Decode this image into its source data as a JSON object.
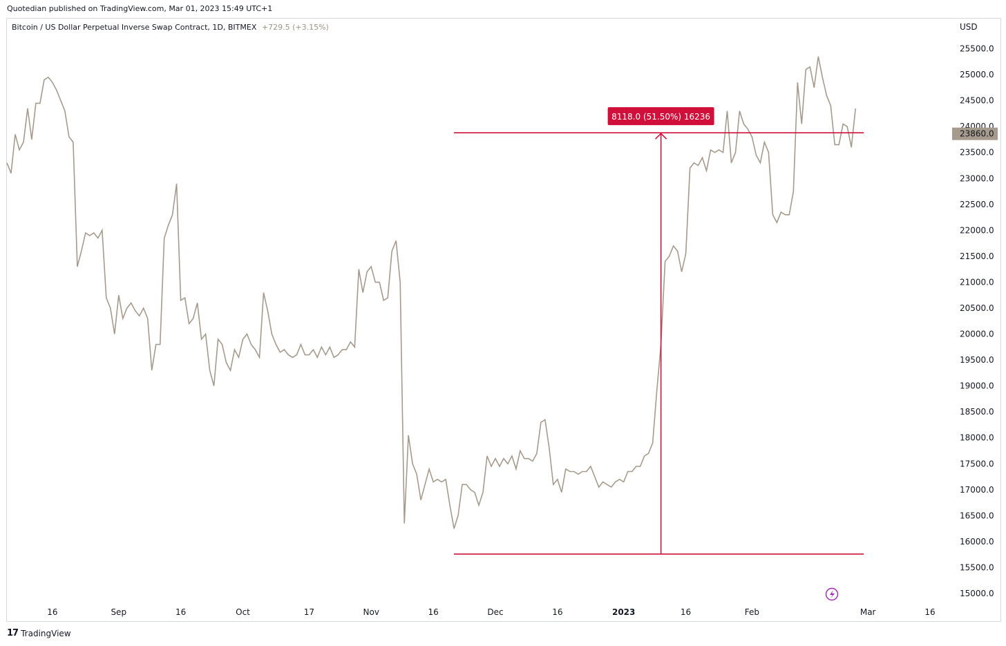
{
  "header": {
    "published": "Quotedian published on TradingView.com, Mar 01, 2023 15:49 UTC+1"
  },
  "legend": {
    "symbol": "Bitcoin / US Dollar Perpetual Inverse Swap Contract, 1D, BITMEX",
    "change": "+729.5 (+3.15%)"
  },
  "footer": {
    "logo_glyph": "17",
    "brand": "TradingView"
  },
  "colors": {
    "line": "#a59a8c",
    "measure": "#d0103a",
    "price_tag": "#a59a8c"
  },
  "chart_data": {
    "type": "line",
    "ylabel": "USD",
    "ylim": [
      14800,
      25800
    ],
    "y_ticks": [
      "15000.0",
      "15500.0",
      "16000.0",
      "16500.0",
      "17000.0",
      "17500.0",
      "18000.0",
      "18500.0",
      "19000.0",
      "19500.0",
      "20000.0",
      "20500.0",
      "21000.0",
      "21500.0",
      "22000.0",
      "22500.0",
      "23000.0",
      "23500.0",
      "24000.0",
      "24500.0",
      "25000.0",
      "25500.0"
    ],
    "x_ticks": [
      {
        "label": "16",
        "date": "2022-08-16"
      },
      {
        "label": "Sep",
        "date": "2022-09-01"
      },
      {
        "label": "16",
        "date": "2022-09-16"
      },
      {
        "label": "Oct",
        "date": "2022-10-01"
      },
      {
        "label": "17",
        "date": "2022-10-17"
      },
      {
        "label": "Nov",
        "date": "2022-11-01"
      },
      {
        "label": "16",
        "date": "2022-11-16"
      },
      {
        "label": "Dec",
        "date": "2022-12-01"
      },
      {
        "label": "16",
        "date": "2022-12-16"
      },
      {
        "label": "2023",
        "date": "2023-01-01",
        "bold": true
      },
      {
        "label": "16",
        "date": "2023-01-16"
      },
      {
        "label": "Feb",
        "date": "2023-02-01"
      },
      {
        "label": "Mar",
        "date": "2023-03-01"
      },
      {
        "label": "16",
        "date": "2023-03-16"
      }
    ],
    "xlim": [
      "2022-08-05",
      "2023-03-21"
    ],
    "last_price": "23860.0",
    "series": [
      {
        "x_start": "2022-08-05",
        "values": [
          23300,
          23100,
          23850,
          23550,
          23700,
          24350,
          23750,
          24450,
          24450,
          24900,
          24950,
          24850,
          24700,
          24500,
          24300,
          23800,
          23700,
          21300,
          21600,
          21950,
          21900,
          21950,
          21850,
          22000,
          20700,
          20500,
          20000,
          20750,
          20300,
          20500,
          20600,
          20450,
          20350,
          20500,
          20300,
          19300,
          19800,
          19800,
          21850,
          22100,
          22300,
          22900,
          20650,
          20700,
          20200,
          20300,
          20600,
          19900,
          20000,
          19300,
          19000,
          19900,
          19800,
          19450,
          19300,
          19700,
          19550,
          19900,
          20000,
          19800,
          19700,
          19550,
          20800,
          20450,
          20000,
          19800,
          19650,
          19700,
          19600,
          19550,
          19600,
          19800,
          19600,
          19600,
          19700,
          19550,
          19750,
          19600,
          19750,
          19550,
          19600,
          19700,
          19700,
          19850,
          19750,
          21250,
          20800,
          21200,
          21300,
          21000,
          21000,
          20650,
          20700,
          21600,
          21800,
          21000,
          16350,
          18050,
          17500,
          17300,
          16800,
          17100,
          17400,
          17150,
          17200,
          17150,
          17200,
          16700,
          16250,
          16500,
          17100,
          17100,
          17000,
          16950,
          16700,
          16950,
          17650,
          17450,
          17600,
          17450,
          17600,
          17500,
          17650,
          17400,
          17750,
          17600,
          17600,
          17550,
          17700,
          18300,
          18350,
          17800,
          17100,
          17200,
          16950,
          17400,
          17350,
          17350,
          17300,
          17350,
          17350,
          17450,
          17250,
          17050,
          17150,
          17100,
          17050,
          17150,
          17200,
          17150,
          17350,
          17350,
          17450,
          17450,
          17650,
          17700,
          17900,
          18900,
          19800,
          21400,
          21500,
          21700,
          21600,
          21200,
          21550,
          23200,
          23300,
          23250,
          23400,
          23150,
          23550,
          23500,
          23550,
          23500,
          24300,
          23300,
          23500,
          24300,
          24050,
          23950,
          23800,
          23450,
          23300,
          23700,
          23500,
          22300,
          22150,
          22350,
          22300,
          22300,
          22750,
          24850,
          24050,
          25100,
          25150,
          24750,
          25350,
          24950,
          24600,
          24400,
          23650,
          23650,
          24050,
          24000,
          23600,
          24350
        ]
      }
    ],
    "measure": {
      "label": "8118.0 (51.50%) 16236",
      "from_date": "2022-11-21",
      "to_date": "2023-02-28",
      "arrow_date": "2023-01-10",
      "low": 15760,
      "high": 23880
    }
  }
}
